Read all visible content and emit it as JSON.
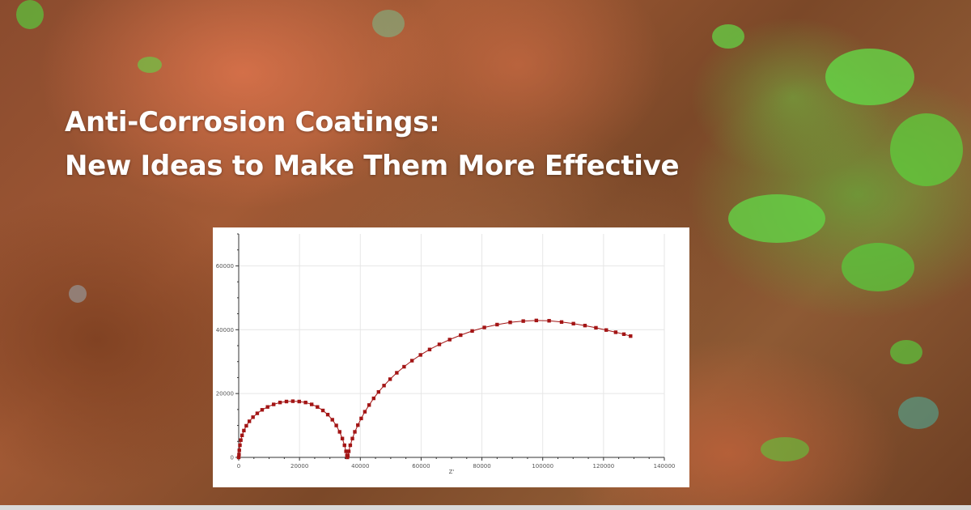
{
  "headline": {
    "line1": "Anti-Corrosion Coatings:",
    "line2": "New Ideas to Make Them More Effective"
  },
  "colors": {
    "headline_text": "#ffffff",
    "series": "#a31515",
    "panel_bg": "#ffffff",
    "grid": "#e6e6e6",
    "axis": "#333333"
  },
  "background": {
    "description_icon": "rusted-corroded-metal-texture"
  },
  "chart_data": {
    "type": "scatter",
    "title": "",
    "xlabel": "Z'",
    "ylabel": "",
    "xlim": [
      0,
      140000
    ],
    "ylim": [
      0,
      70000
    ],
    "x_ticks": [
      0,
      20000,
      40000,
      60000,
      80000,
      100000,
      120000,
      140000
    ],
    "x_tick_labels": [
      "0",
      "20000",
      "40000",
      "60000",
      "80000",
      "100000",
      "120000",
      "140000"
    ],
    "y_ticks": [
      0,
      20000,
      40000,
      60000
    ],
    "y_tick_labels": [
      "0",
      "20000",
      "40000",
      "60000"
    ],
    "grid": true,
    "markers": "square",
    "connected_line": true,
    "series": [
      {
        "points": [
          [
            0,
            0
          ],
          [
            100,
            900
          ],
          [
            200,
            2200
          ],
          [
            400,
            3800
          ],
          [
            700,
            5400
          ],
          [
            1100,
            6900
          ],
          [
            1700,
            8400
          ],
          [
            2500,
            9900
          ],
          [
            3500,
            11300
          ],
          [
            4700,
            12600
          ],
          [
            6100,
            13800
          ],
          [
            7700,
            14900
          ],
          [
            9500,
            15800
          ],
          [
            11500,
            16600
          ],
          [
            13600,
            17200
          ],
          [
            15700,
            17500
          ],
          [
            17800,
            17600
          ],
          [
            19900,
            17500
          ],
          [
            22000,
            17200
          ],
          [
            24000,
            16600
          ],
          [
            25900,
            15800
          ],
          [
            27700,
            14700
          ],
          [
            29300,
            13400
          ],
          [
            30800,
            11800
          ],
          [
            32100,
            10000
          ],
          [
            33200,
            8000
          ],
          [
            34100,
            5900
          ],
          [
            34800,
            3800
          ],
          [
            35300,
            1900
          ],
          [
            35600,
            600
          ],
          [
            35750,
            0
          ],
          [
            35900,
            600
          ],
          [
            36200,
            1900
          ],
          [
            36700,
            3800
          ],
          [
            37400,
            5900
          ],
          [
            38200,
            8000
          ],
          [
            39200,
            10100
          ],
          [
            40300,
            12200
          ],
          [
            41500,
            14300
          ],
          [
            42900,
            16400
          ],
          [
            44400,
            18500
          ],
          [
            46000,
            20500
          ],
          [
            47800,
            22500
          ],
          [
            49800,
            24500
          ],
          [
            52000,
            26500
          ],
          [
            54400,
            28400
          ],
          [
            57000,
            30300
          ],
          [
            59800,
            32100
          ],
          [
            62800,
            33800
          ],
          [
            66000,
            35400
          ],
          [
            69400,
            36900
          ],
          [
            73000,
            38300
          ],
          [
            76800,
            39600
          ],
          [
            80800,
            40700
          ],
          [
            85000,
            41600
          ],
          [
            89300,
            42300
          ],
          [
            93600,
            42700
          ],
          [
            97900,
            42900
          ],
          [
            102100,
            42800
          ],
          [
            106200,
            42400
          ],
          [
            110100,
            41900
          ],
          [
            113900,
            41300
          ],
          [
            117500,
            40600
          ],
          [
            120900,
            39900
          ],
          [
            124000,
            39200
          ],
          [
            126700,
            38600
          ],
          [
            128900,
            38000
          ]
        ]
      }
    ]
  }
}
